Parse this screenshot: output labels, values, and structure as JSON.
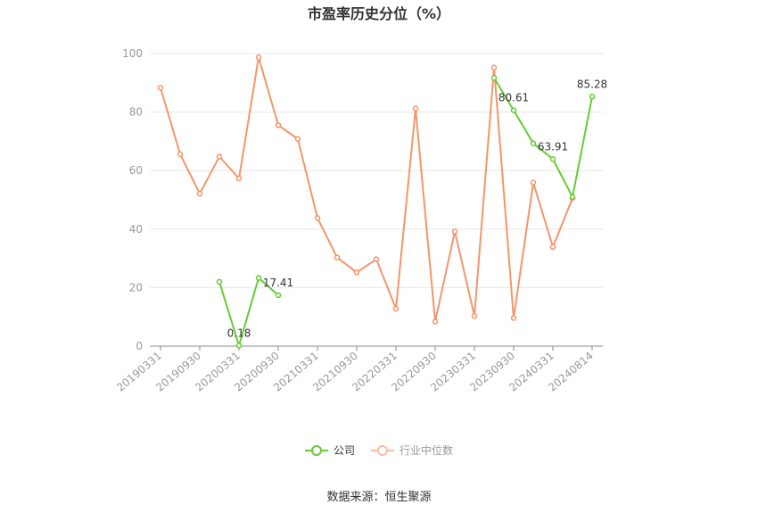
{
  "title": "市盈率历史分位（%）",
  "source": "数据来源：恒生聚源",
  "colors": {
    "company": "#66cc33",
    "industry": "#f4956a",
    "grid": "#e6e6e6",
    "axis": "#999999"
  },
  "chart_data": {
    "type": "line",
    "title": "市盈率历史分位（%）",
    "xlabel": "",
    "ylabel": "",
    "ylim": [
      0,
      100
    ],
    "yticks": [
      0,
      20,
      40,
      60,
      80,
      100
    ],
    "grid": true,
    "legend_position": "bottom",
    "x_tick_labels": [
      "20190331",
      "20190930",
      "20200331",
      "20200930",
      "20210331",
      "20210930",
      "20220331",
      "20220930",
      "20230331",
      "20230930",
      "20240331",
      "20240814"
    ],
    "x": [
      "20190331",
      "20190630",
      "20190930",
      "20191231",
      "20200331",
      "20200630",
      "20200930",
      "20201231",
      "20210331",
      "20210630",
      "20210930",
      "20211231",
      "20220331",
      "20220630",
      "20220930",
      "20221231",
      "20230331",
      "20230630",
      "20230930",
      "20231231",
      "20240331",
      "20240630",
      "20240814"
    ],
    "series": [
      {
        "name": "公司",
        "color": "#66cc33",
        "values": [
          null,
          null,
          null,
          22.0,
          0.18,
          23.3,
          17.41,
          null,
          null,
          null,
          null,
          null,
          null,
          null,
          null,
          null,
          null,
          91.7,
          80.61,
          69.3,
          63.91,
          51.0,
          85.28
        ],
        "labels": {
          "4": "0.18",
          "6": "17.41",
          "18": "80.61",
          "20": "63.91",
          "22": "85.28"
        }
      },
      {
        "name": "行业中位数",
        "color": "#f4956a",
        "values": [
          88.3,
          65.6,
          52.1,
          64.8,
          57.3,
          98.7,
          75.5,
          70.8,
          43.8,
          30.3,
          25.2,
          29.7,
          12.8,
          81.2,
          8.4,
          39.2,
          10.3,
          95.2,
          9.6,
          55.9,
          33.9,
          50.6,
          null
        ]
      }
    ]
  },
  "legend": [
    {
      "label": "公司"
    },
    {
      "label": "行业中位数"
    }
  ]
}
